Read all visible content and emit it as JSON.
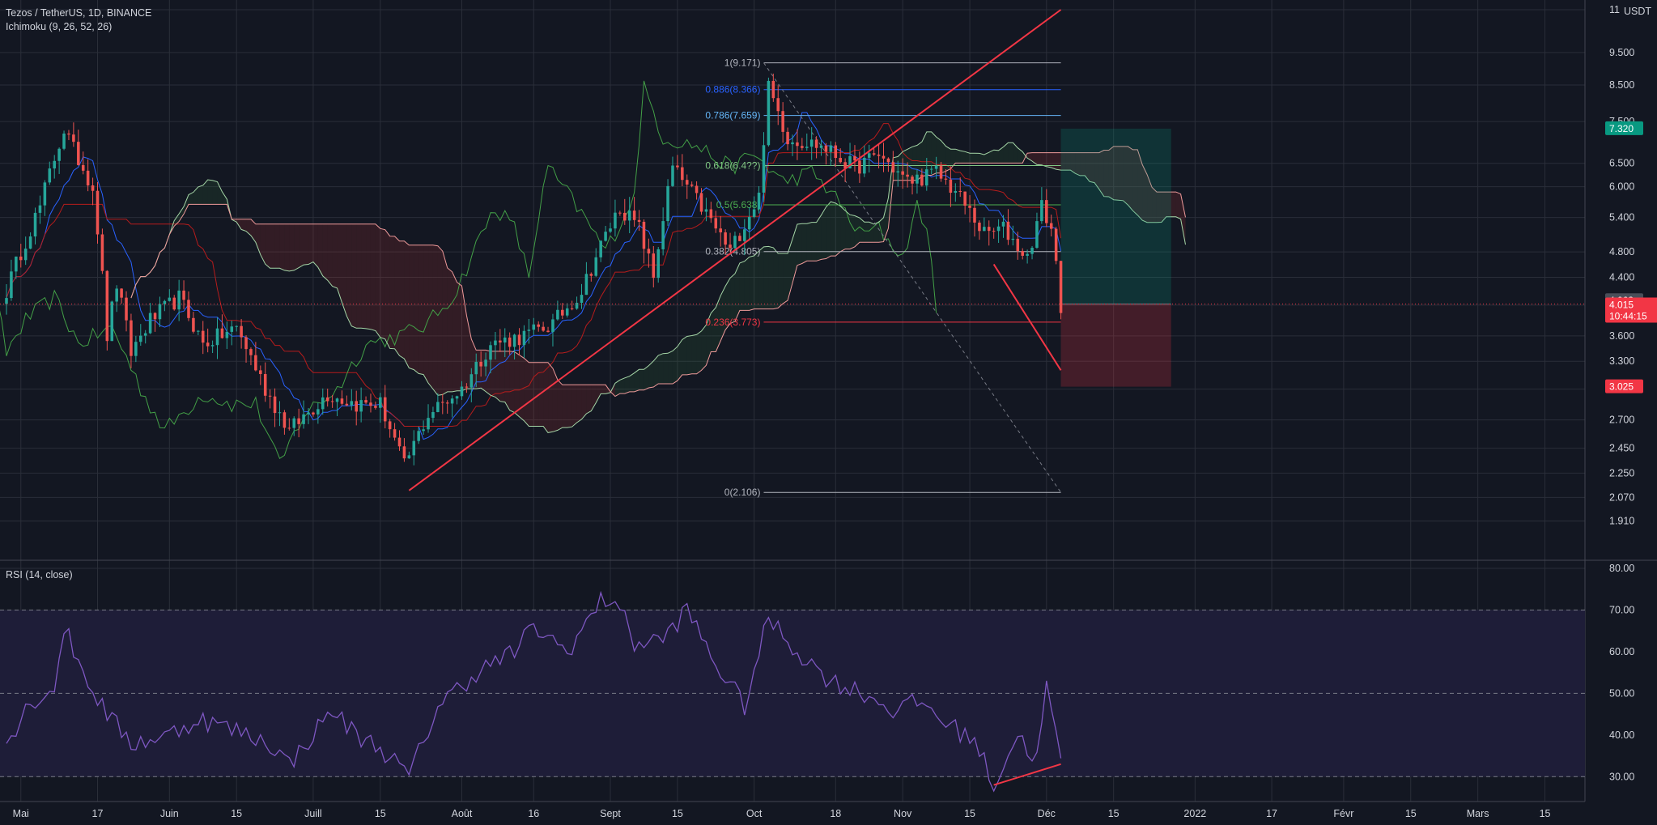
{
  "header": {
    "title": "Tezos / TetherUS, 1D, BINANCE",
    "indicator": "Ichimoku (9, 26, 52, 26)",
    "rsi_label": "RSI (14, close)",
    "currency": "USDT"
  },
  "colors": {
    "background": "#131722",
    "grid": "#2a2e39",
    "up": "#26a69a",
    "down": "#ef5350",
    "rsi_line": "#7e57c2",
    "rsi_band": "#1f1f3a",
    "trendline": "#f23645"
  },
  "chart_data": [
    {
      "type": "candlestick",
      "title": "Tezos / TetherUS, 1D, BINANCE",
      "y_scale": "log",
      "ylim": [
        1.75,
        11.0
      ],
      "y_ticks": [
        "1.910",
        "2.070",
        "2.250",
        "2.450",
        "2.700",
        "3.000",
        "3.300",
        "3.600",
        "4.000",
        "4.400",
        "4.800",
        "5.400",
        "6.000",
        "6.500",
        "7.500",
        "8.500",
        "9.500",
        "11"
      ],
      "x_ticks": [
        "Mai",
        "17",
        "Juin",
        "15",
        "Juill",
        "15",
        "Août",
        "16",
        "Sept",
        "15",
        "Oct",
        "18",
        "Nov",
        "15",
        "Déc",
        "15",
        "2022",
        "17",
        "Févr",
        "15",
        "Mars",
        "15"
      ],
      "x_range": [
        "2021-04-28",
        "2022-03-22"
      ],
      "anchors": [
        [
          "2021-04-28",
          4.2
        ],
        [
          "2021-05-05",
          5.6
        ],
        [
          "2021-05-10",
          7.3
        ],
        [
          "2021-05-12",
          6.8
        ],
        [
          "2021-05-16",
          6.0
        ],
        [
          "2021-05-19",
          3.6
        ],
        [
          "2021-05-21",
          4.3
        ],
        [
          "2021-05-24",
          3.4
        ],
        [
          "2021-05-28",
          3.8
        ],
        [
          "2021-06-03",
          4.1
        ],
        [
          "2021-06-08",
          3.5
        ],
        [
          "2021-06-15",
          3.7
        ],
        [
          "2021-06-21",
          3.0
        ],
        [
          "2021-06-26",
          2.6
        ],
        [
          "2021-07-04",
          2.95
        ],
        [
          "2021-07-10",
          2.85
        ],
        [
          "2021-07-15",
          2.85
        ],
        [
          "2021-07-20",
          2.3
        ],
        [
          "2021-07-25",
          2.75
        ],
        [
          "2021-08-01",
          3.0
        ],
        [
          "2021-08-07",
          3.5
        ],
        [
          "2021-08-14",
          3.6
        ],
        [
          "2021-08-20",
          3.75
        ],
        [
          "2021-08-26",
          4.2
        ],
        [
          "2021-09-03",
          5.6
        ],
        [
          "2021-09-07",
          5.2
        ],
        [
          "2021-09-10",
          4.4
        ],
        [
          "2021-09-14",
          6.4
        ],
        [
          "2021-09-20",
          5.6
        ],
        [
          "2021-09-26",
          4.8
        ],
        [
          "2021-10-02",
          5.8
        ],
        [
          "2021-10-04",
          8.4
        ],
        [
          "2021-10-08",
          7.1
        ],
        [
          "2021-10-15",
          6.9
        ],
        [
          "2021-10-22",
          6.4
        ],
        [
          "2021-10-27",
          6.7
        ],
        [
          "2021-11-02",
          6.1
        ],
        [
          "2021-11-08",
          6.3
        ],
        [
          "2021-11-12",
          5.9
        ],
        [
          "2021-11-18",
          5.1
        ],
        [
          "2021-11-22",
          5.2
        ],
        [
          "2021-11-27",
          4.7
        ],
        [
          "2021-11-30",
          5.6
        ],
        [
          "2021-12-02",
          5.2
        ],
        [
          "2021-12-04",
          4.0
        ]
      ],
      "last_price": 4.015,
      "countdown": "10:44:15",
      "price_tags": [
        {
          "value": "7.320",
          "price": 7.32,
          "color": "#089981"
        },
        {
          "value": "4.063",
          "price": 4.063,
          "color": "#4a4e59"
        },
        {
          "value": "3.025",
          "price": 3.025,
          "color": "#f23645"
        }
      ],
      "fibonacci": [
        {
          "label": "1(9.171)",
          "price": 9.171,
          "color": "#b2b5be"
        },
        {
          "label": "0.886(8.366)",
          "price": 8.366,
          "color": "#2962ff"
        },
        {
          "label": "0.786(7.659)",
          "price": 7.659,
          "color": "#64b5f6"
        },
        {
          "label": "0.618(6.4??)",
          "price": 6.45,
          "color": "#81c784"
        },
        {
          "label": "0.5(5.638)",
          "price": 5.638,
          "color": "#4caf50"
        },
        {
          "label": "0.382(4.805)",
          "price": 4.805,
          "color": "#b2b5be"
        },
        {
          "label": "0.236(3.773)",
          "price": 3.773,
          "color": "#f23645"
        },
        {
          "label": "0(2.106)",
          "price": 2.106,
          "color": "#b2b5be"
        }
      ],
      "trend_lines": [
        {
          "from": [
            "2021-07-21",
            2.12
          ],
          "to": [
            "2021-12-04",
            11.0
          ]
        },
        {
          "from": [
            "2021-11-20",
            4.6
          ],
          "to": [
            "2021-12-04",
            3.2
          ]
        }
      ],
      "position": {
        "from": "2021-12-04",
        "to": "2021-12-27",
        "entry": 4.015,
        "target": 7.32,
        "stop": 3.025
      }
    },
    {
      "type": "line",
      "title": "RSI (14, close)",
      "ylim": [
        25,
        80
      ],
      "y_ticks": [
        "30.00",
        "40.00",
        "50.00",
        "60.00",
        "70.00",
        "80.00"
      ],
      "bands": [
        30,
        50,
        70
      ],
      "anchors": [
        [
          "2021-04-28",
          38
        ],
        [
          "2021-05-03",
          48
        ],
        [
          "2021-05-08",
          51
        ],
        [
          "2021-05-10",
          66
        ],
        [
          "2021-05-14",
          55
        ],
        [
          "2021-05-19",
          45
        ],
        [
          "2021-05-24",
          38
        ],
        [
          "2021-06-01",
          40
        ],
        [
          "2021-06-07",
          44
        ],
        [
          "2021-06-15",
          41
        ],
        [
          "2021-06-22",
          38
        ],
        [
          "2021-06-26",
          33
        ],
        [
          "2021-07-05",
          46
        ],
        [
          "2021-07-10",
          40
        ],
        [
          "2021-07-15",
          37
        ],
        [
          "2021-07-21",
          30
        ],
        [
          "2021-07-27",
          47
        ],
        [
          "2021-08-04",
          55
        ],
        [
          "2021-08-12",
          60
        ],
        [
          "2021-08-16",
          66
        ],
        [
          "2021-08-23",
          60
        ],
        [
          "2021-08-30",
          72
        ],
        [
          "2021-09-02",
          73
        ],
        [
          "2021-09-06",
          62
        ],
        [
          "2021-09-12",
          63
        ],
        [
          "2021-09-17",
          70
        ],
        [
          "2021-09-23",
          57
        ],
        [
          "2021-09-29",
          47
        ],
        [
          "2021-10-04",
          68
        ],
        [
          "2021-10-10",
          60
        ],
        [
          "2021-10-17",
          53
        ],
        [
          "2021-10-24",
          50
        ],
        [
          "2021-10-30",
          46
        ],
        [
          "2021-11-05",
          48
        ],
        [
          "2021-11-11",
          42
        ],
        [
          "2021-11-16",
          39
        ],
        [
          "2021-11-20",
          28
        ],
        [
          "2021-11-25",
          40
        ],
        [
          "2021-11-29",
          34
        ],
        [
          "2021-12-01",
          52
        ],
        [
          "2021-12-04",
          33
        ]
      ],
      "divergence": {
        "from": [
          "2021-11-20",
          28
        ],
        "to": [
          "2021-12-04",
          33
        ]
      }
    }
  ]
}
